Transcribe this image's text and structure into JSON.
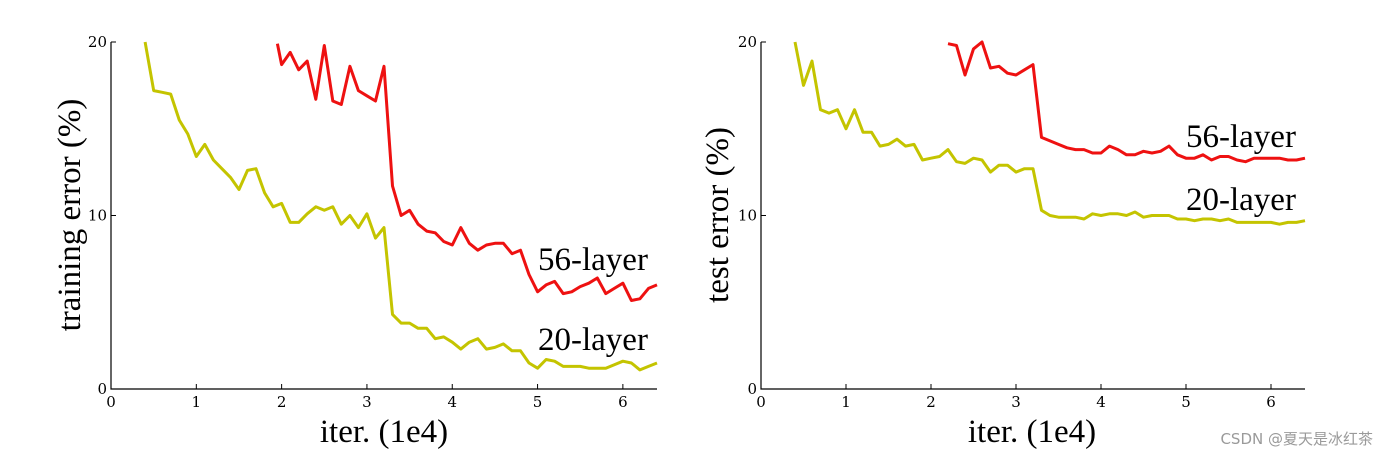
{
  "colors": {
    "56-layer": "#ee1111",
    "20-layer": "#c4c400",
    "axis": "#000000"
  },
  "watermark": "CSDN @夏天是冰红茶",
  "chart_data": [
    {
      "type": "line",
      "xlabel": "iter. (1e4)",
      "ylabel": "training error (%)",
      "xlim": [
        0,
        6.4
      ],
      "ylim": [
        0,
        20
      ],
      "xticks": [
        "0",
        "1",
        "2",
        "3",
        "4",
        "5",
        "6"
      ],
      "yticks": [
        "0",
        "10",
        "20"
      ],
      "grid": false,
      "series": [
        {
          "name": "56-layer",
          "color_key": "56-layer",
          "x": [
            1.95,
            2.0,
            2.1,
            2.2,
            2.3,
            2.4,
            2.5,
            2.6,
            2.7,
            2.8,
            2.9,
            3.0,
            3.1,
            3.2,
            3.3,
            3.4,
            3.5,
            3.6,
            3.7,
            3.8,
            3.9,
            4.0,
            4.1,
            4.2,
            4.3,
            4.4,
            4.5,
            4.6,
            4.7,
            4.8,
            4.9,
            5.0,
            5.1,
            5.2,
            5.3,
            5.4,
            5.5,
            5.6,
            5.7,
            5.8,
            5.9,
            6.0,
            6.1,
            6.2,
            6.3,
            6.4
          ],
          "y": [
            19.9,
            18.7,
            19.4,
            18.4,
            18.9,
            16.7,
            19.8,
            16.6,
            16.4,
            18.6,
            17.2,
            16.9,
            16.6,
            18.6,
            11.7,
            10.0,
            10.3,
            9.5,
            9.1,
            9.0,
            8.5,
            8.3,
            9.3,
            8.4,
            8.0,
            8.3,
            8.4,
            8.4,
            7.8,
            8.0,
            6.6,
            5.6,
            6.0,
            6.2,
            5.5,
            5.6,
            5.9,
            6.1,
            6.4,
            5.5,
            5.8,
            6.1,
            5.1,
            5.2,
            5.8,
            6.0
          ]
        },
        {
          "name": "20-layer",
          "color_key": "20-layer",
          "x": [
            0.4,
            0.5,
            0.6,
            0.7,
            0.8,
            0.9,
            1.0,
            1.1,
            1.2,
            1.3,
            1.4,
            1.5,
            1.6,
            1.7,
            1.8,
            1.9,
            2.0,
            2.1,
            2.2,
            2.3,
            2.4,
            2.5,
            2.6,
            2.7,
            2.8,
            2.9,
            3.0,
            3.1,
            3.2,
            3.3,
            3.4,
            3.5,
            3.6,
            3.7,
            3.8,
            3.9,
            4.0,
            4.1,
            4.2,
            4.3,
            4.4,
            4.5,
            4.6,
            4.7,
            4.8,
            4.9,
            5.0,
            5.1,
            5.2,
            5.3,
            5.4,
            5.5,
            5.6,
            5.7,
            5.8,
            5.9,
            6.0,
            6.1,
            6.2,
            6.3,
            6.4
          ],
          "y": [
            20.0,
            17.2,
            17.1,
            17.0,
            15.5,
            14.7,
            13.4,
            14.1,
            13.2,
            12.7,
            12.2,
            11.5,
            12.6,
            12.7,
            11.3,
            10.5,
            10.7,
            9.6,
            9.6,
            10.1,
            10.5,
            10.3,
            10.5,
            9.5,
            10.0,
            9.3,
            10.1,
            8.7,
            9.3,
            4.3,
            3.8,
            3.8,
            3.5,
            3.5,
            2.9,
            3.0,
            2.7,
            2.3,
            2.7,
            2.9,
            2.3,
            2.4,
            2.6,
            2.2,
            2.2,
            1.5,
            1.2,
            1.7,
            1.6,
            1.3,
            1.3,
            1.3,
            1.2,
            1.2,
            1.2,
            1.4,
            1.6,
            1.5,
            1.1,
            1.3,
            1.5
          ]
        }
      ]
    },
    {
      "type": "line",
      "xlabel": "iter. (1e4)",
      "ylabel": "test error (%)",
      "xlim": [
        0,
        6.4
      ],
      "ylim": [
        0,
        20
      ],
      "xticks": [
        "0",
        "1",
        "2",
        "3",
        "4",
        "5",
        "6"
      ],
      "yticks": [
        "0",
        "10",
        "20"
      ],
      "grid": false,
      "series": [
        {
          "name": "56-layer",
          "color_key": "56-layer",
          "x": [
            2.2,
            2.3,
            2.4,
            2.5,
            2.6,
            2.7,
            2.8,
            2.9,
            3.0,
            3.1,
            3.2,
            3.3,
            3.4,
            3.5,
            3.6,
            3.7,
            3.8,
            3.9,
            4.0,
            4.1,
            4.2,
            4.3,
            4.4,
            4.5,
            4.6,
            4.7,
            4.8,
            4.9,
            5.0,
            5.1,
            5.2,
            5.3,
            5.4,
            5.5,
            5.6,
            5.7,
            5.8,
            5.9,
            6.0,
            6.1,
            6.2,
            6.3,
            6.4
          ],
          "y": [
            19.9,
            19.8,
            18.1,
            19.6,
            20.0,
            18.5,
            18.6,
            18.2,
            18.1,
            18.4,
            18.7,
            14.5,
            14.3,
            14.1,
            13.9,
            13.8,
            13.8,
            13.6,
            13.6,
            14.0,
            13.8,
            13.5,
            13.5,
            13.7,
            13.6,
            13.7,
            14.0,
            13.5,
            13.3,
            13.3,
            13.5,
            13.2,
            13.4,
            13.4,
            13.2,
            13.1,
            13.3,
            13.3,
            13.3,
            13.3,
            13.2,
            13.2,
            13.3
          ]
        },
        {
          "name": "20-layer",
          "color_key": "20-layer",
          "x": [
            0.4,
            0.5,
            0.6,
            0.7,
            0.8,
            0.9,
            1.0,
            1.1,
            1.2,
            1.3,
            1.4,
            1.5,
            1.6,
            1.7,
            1.8,
            1.9,
            2.0,
            2.1,
            2.2,
            2.3,
            2.4,
            2.5,
            2.6,
            2.7,
            2.8,
            2.9,
            3.0,
            3.1,
            3.2,
            3.3,
            3.4,
            3.5,
            3.6,
            3.7,
            3.8,
            3.9,
            4.0,
            4.1,
            4.2,
            4.3,
            4.4,
            4.5,
            4.6,
            4.7,
            4.8,
            4.9,
            5.0,
            5.1,
            5.2,
            5.3,
            5.4,
            5.5,
            5.6,
            5.7,
            5.8,
            5.9,
            6.0,
            6.1,
            6.2,
            6.3,
            6.4
          ],
          "y": [
            20.0,
            17.5,
            18.9,
            16.1,
            15.9,
            16.1,
            15.0,
            16.1,
            14.8,
            14.8,
            14.0,
            14.1,
            14.4,
            14.0,
            14.1,
            13.2,
            13.3,
            13.4,
            13.8,
            13.1,
            13.0,
            13.3,
            13.2,
            12.5,
            12.9,
            12.9,
            12.5,
            12.7,
            12.7,
            10.3,
            10.0,
            9.9,
            9.9,
            9.9,
            9.8,
            10.1,
            10.0,
            10.1,
            10.1,
            10.0,
            10.2,
            9.9,
            10.0,
            10.0,
            10.0,
            9.8,
            9.8,
            9.7,
            9.8,
            9.8,
            9.7,
            9.8,
            9.6,
            9.6,
            9.6,
            9.6,
            9.6,
            9.5,
            9.6,
            9.6,
            9.7
          ]
        }
      ]
    }
  ]
}
